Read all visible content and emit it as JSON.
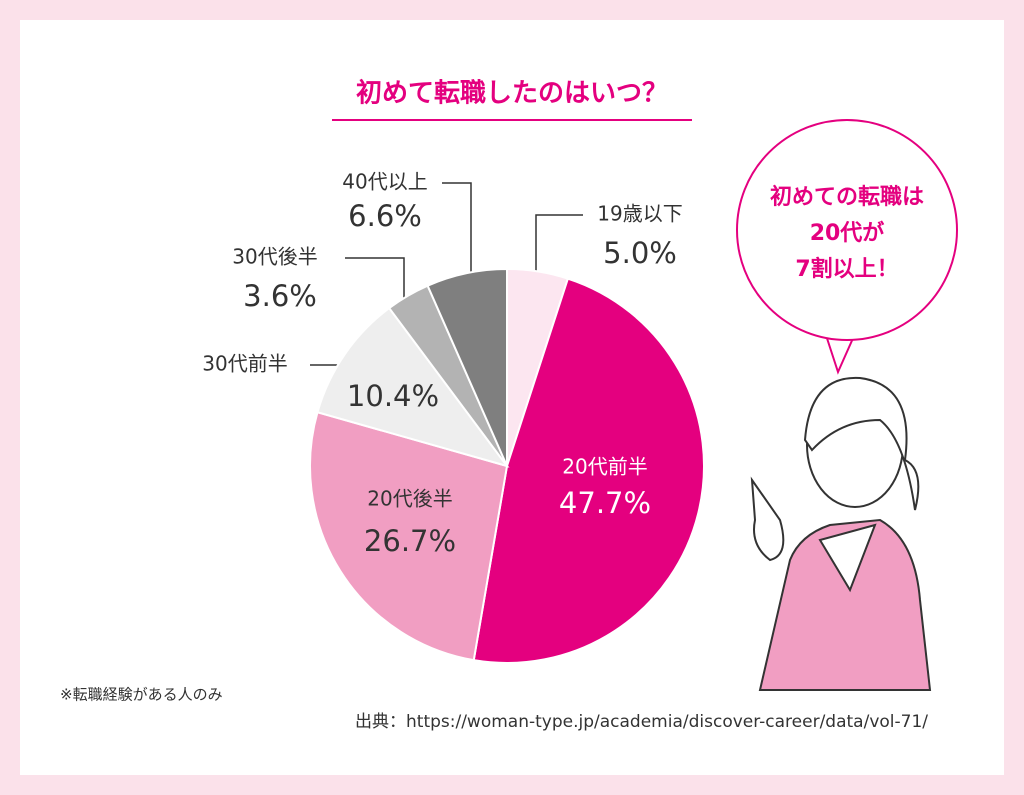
{
  "chart_data": {
    "type": "pie",
    "title": "初めて転職したのはいつ？",
    "categories": [
      "19歳以下",
      "20代前半",
      "20代後半",
      "30代前半",
      "30代後半",
      "40代以上"
    ],
    "values": [
      5.0,
      47.7,
      26.7,
      10.4,
      3.6,
      6.6
    ],
    "value_labels": [
      "5.0%",
      "47.7%",
      "26.7%",
      "10.4%",
      "3.6%",
      "6.6%"
    ],
    "colors": [
      "#fce6f0",
      "#e4007f",
      "#f19ec2",
      "#eeeeee",
      "#b3b3b3",
      "#7f7f7f"
    ],
    "annotation": [
      "初めての転職は",
      "20代が",
      "7割以上！"
    ],
    "note": "※転職経験がある人のみ",
    "source": "出典：https://woman-type.jp/academia/discover-career/data/vol-71/"
  }
}
